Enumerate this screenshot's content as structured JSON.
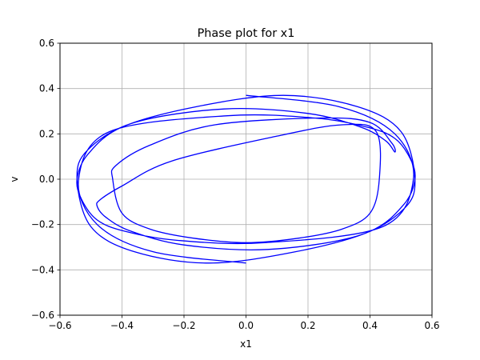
{
  "chart_data": {
    "type": "line",
    "title": "Phase plot for x1",
    "xlabel": "x1",
    "ylabel": "v",
    "xlim": [
      -0.6,
      0.6
    ],
    "ylim": [
      -0.6,
      0.6
    ],
    "xticks": [
      -0.6,
      -0.4,
      -0.2,
      0.0,
      0.2,
      0.4,
      0.6
    ],
    "yticks": [
      -0.6,
      -0.4,
      -0.2,
      0.0,
      0.2,
      0.4,
      0.6
    ],
    "xtick_labels": [
      "−0.6",
      "−0.4",
      "−0.2",
      "0.0",
      "0.2",
      "0.4",
      "0.6"
    ],
    "ytick_labels": [
      "−0.6",
      "−0.4",
      "−0.2",
      "0.0",
      "0.2",
      "0.4",
      "0.6"
    ],
    "grid": true,
    "line_color": "#0000ff",
    "series": [
      {
        "x": [
          0.0,
          0.3,
          0.48,
          0.54,
          0.44,
          0.06,
          -0.22,
          -0.39,
          -0.48,
          -0.53,
          -0.545,
          -0.51,
          -0.4,
          -0.16,
          0.12,
          0.36,
          0.5,
          0.545,
          0.51,
          0.36,
          0.07,
          -0.2,
          -0.37,
          -0.45,
          -0.48,
          -0.47,
          -0.4,
          -0.24,
          0.1,
          0.31,
          0.42,
          0.43,
          0.4,
          0.31,
          0.17,
          0.0,
          -0.17,
          -0.31,
          -0.4,
          -0.43,
          -0.42,
          -0.31,
          -0.1,
          0.24,
          0.4,
          0.47,
          0.48,
          0.45,
          0.37,
          0.2,
          -0.07,
          -0.36,
          -0.51,
          -0.545,
          -0.5,
          -0.36,
          -0.12,
          0.16,
          0.4,
          0.51,
          0.545,
          0.53,
          0.48,
          0.39,
          0.22,
          -0.06,
          -0.44,
          -0.54,
          -0.48,
          -0.3,
          0.0
        ],
        "y": [
          0.37,
          0.32,
          0.2,
          0.0,
          -0.21,
          -0.28,
          -0.27,
          -0.23,
          -0.18,
          -0.09,
          0.0,
          0.11,
          0.23,
          0.32,
          0.37,
          0.32,
          0.21,
          0.0,
          -0.13,
          -0.25,
          -0.31,
          -0.29,
          -0.23,
          -0.17,
          -0.12,
          -0.09,
          -0.03,
          0.08,
          0.19,
          0.24,
          0.21,
          0.0,
          -0.15,
          -0.22,
          -0.26,
          -0.28,
          -0.26,
          -0.22,
          -0.15,
          0.0,
          0.06,
          0.15,
          0.24,
          0.27,
          0.25,
          0.16,
          0.12,
          0.17,
          0.23,
          0.29,
          0.31,
          0.25,
          0.13,
          0.0,
          -0.21,
          -0.32,
          -0.37,
          -0.32,
          -0.23,
          -0.11,
          0.0,
          0.09,
          0.18,
          0.23,
          0.27,
          0.28,
          0.21,
          0.0,
          -0.2,
          -0.32,
          -0.37
        ]
      }
    ]
  }
}
